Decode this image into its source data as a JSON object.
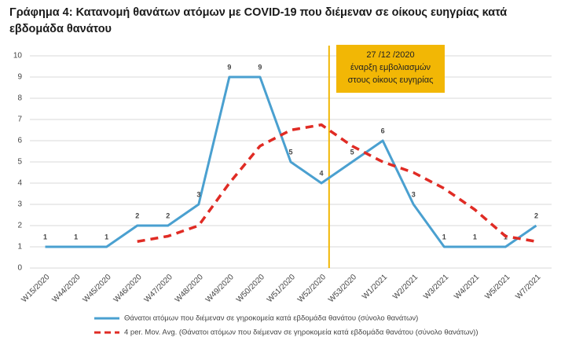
{
  "chart_data": {
    "type": "line",
    "title": [
      "Γράφημα 4: Κατανομή θανάτων ατόμων με COVID-19 που διέμεναν σε οίκους ευηγρίας κατά",
      "εβδομάδα θανάτου"
    ],
    "categories": [
      "W15/2020",
      "W44/2020",
      "W45/2020",
      "W46/2020",
      "W47/2020",
      "W48/2020",
      "W49/2020",
      "W50/2020",
      "W51/2020",
      "W52/2020",
      "W53/2020",
      "W1/2021",
      "W2/2021",
      "W3/2021",
      "W4/2021",
      "W5/2021",
      "W7/2021"
    ],
    "series": [
      {
        "name": "Θάνατοι ατόμων που διέμεναν σε γηροκομεία κατά εβδομάδα θανάτου (σύνολο θανάτων)",
        "color": "#4aa0d0",
        "style": "solid",
        "values": [
          1,
          1,
          1,
          2,
          2,
          3,
          9,
          9,
          5,
          4,
          5,
          6,
          3,
          1,
          1,
          1,
          2
        ],
        "data_labels": true
      },
      {
        "name": "4 per. Mov. Avg. (Θάνατοι ατόμων που διέμεναν σε γηροκομεία κατά εβδομάδα θανάτου (σύνολο θανάτων))",
        "color": "#e02b24",
        "style": "dashed",
        "values": [
          null,
          null,
          null,
          1.25,
          1.5,
          2,
          4,
          5.75,
          6.5,
          6.75,
          5.75,
          5,
          4.5,
          3.75,
          2.75,
          1.5,
          1.25
        ],
        "data_labels": false
      }
    ],
    "annotation": {
      "lines": [
        "27 /12 /2020",
        "έναρξη εμβολιασμών",
        "στους οίκους ευγηρίας"
      ],
      "color": "#f2b705"
    },
    "ylim": [
      0,
      10
    ],
    "yticks": [
      0,
      1,
      2,
      3,
      4,
      5,
      6,
      7,
      8,
      9,
      10
    ],
    "grid": true,
    "legend": "bottom"
  }
}
